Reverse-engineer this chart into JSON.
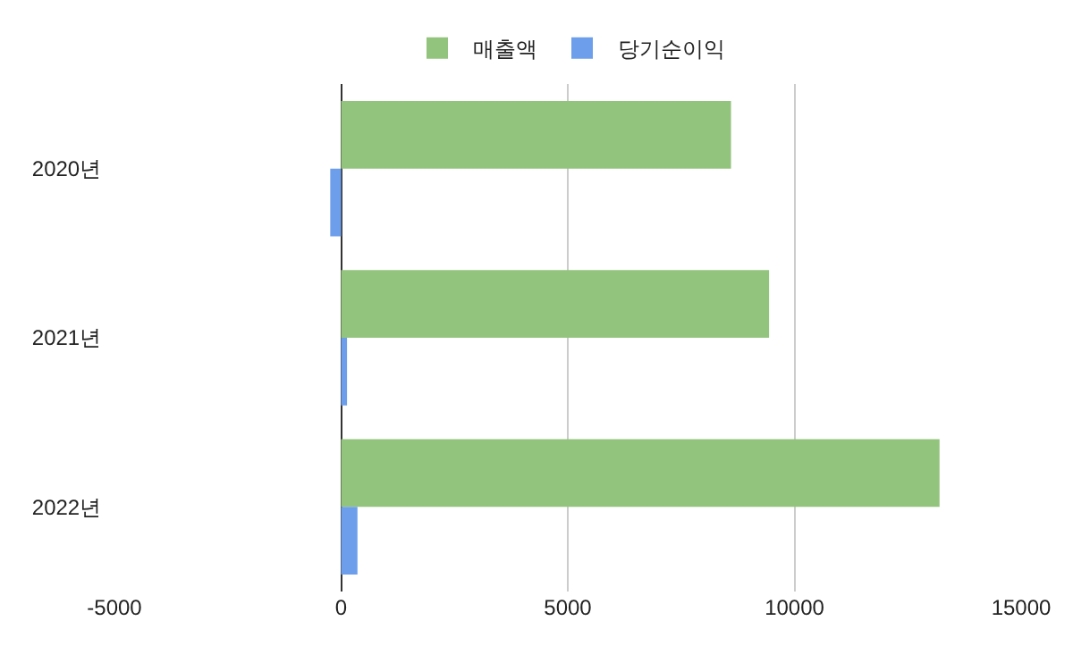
{
  "chart_data": {
    "type": "bar",
    "orientation": "horizontal",
    "categories": [
      "2020년",
      "2021년",
      "2022년"
    ],
    "series": [
      {
        "name": "매출액",
        "color": "#93c47d",
        "values": [
          8600,
          9440,
          13200
        ]
      },
      {
        "name": "당기순이익",
        "color": "#6d9eeb",
        "values": [
          -240,
          130,
          360
        ]
      }
    ],
    "xlim": [
      -5000,
      15000
    ],
    "xticks": [
      -5000,
      0,
      5000,
      10000,
      15000
    ],
    "grid": "x",
    "legend": "top"
  }
}
